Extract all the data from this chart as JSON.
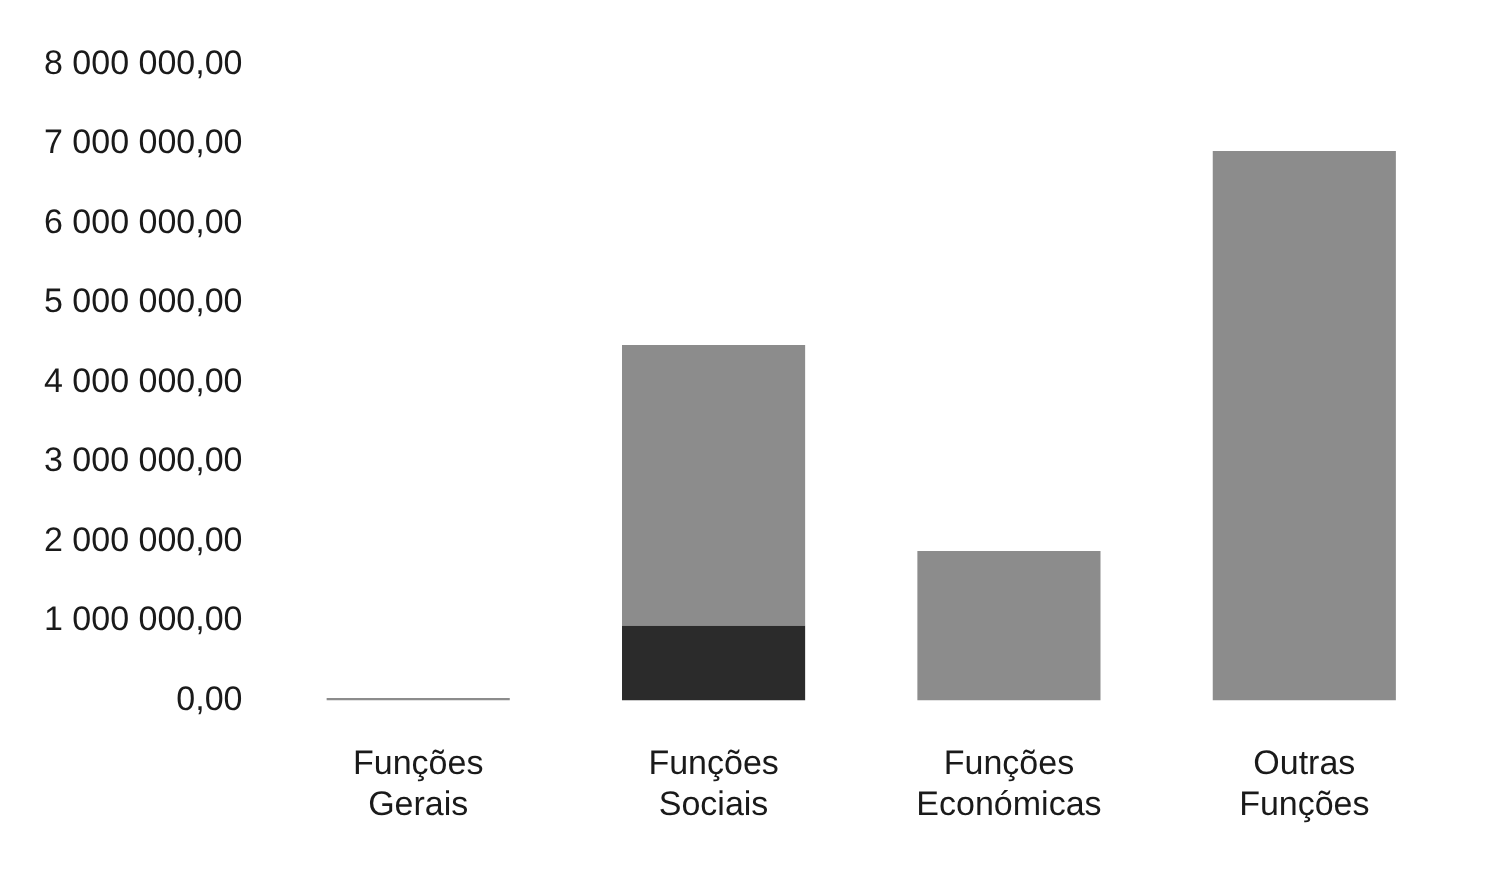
{
  "chart_data": {
    "type": "bar",
    "stacked": true,
    "categories": [
      "Funções Gerais",
      "Funções Sociais",
      "Funções Económicas",
      "Outras Funções"
    ],
    "series": [
      {
        "color": "#2b2b2b",
        "values": [
          0,
          940000,
          0,
          0
        ]
      },
      {
        "color": "#8c8c8c",
        "values": [
          30000,
          3530000,
          1880000,
          6910000
        ]
      }
    ],
    "ylim": [
      0,
      8000000
    ],
    "yticks": [
      {
        "value": 0,
        "label": "0,00"
      },
      {
        "value": 1000000,
        "label": "1 000 000,00"
      },
      {
        "value": 2000000,
        "label": "2 000 000,00"
      },
      {
        "value": 3000000,
        "label": "3 000 000,00"
      },
      {
        "value": 4000000,
        "label": "4 000 000,00"
      },
      {
        "value": 5000000,
        "label": "5 000 000,00"
      },
      {
        "value": 6000000,
        "label": "6 000 000,00"
      },
      {
        "value": 7000000,
        "label": "7 000 000,00"
      },
      {
        "value": 8000000,
        "label": "8 000 000,00"
      }
    ],
    "grid": false,
    "legend": false
  }
}
